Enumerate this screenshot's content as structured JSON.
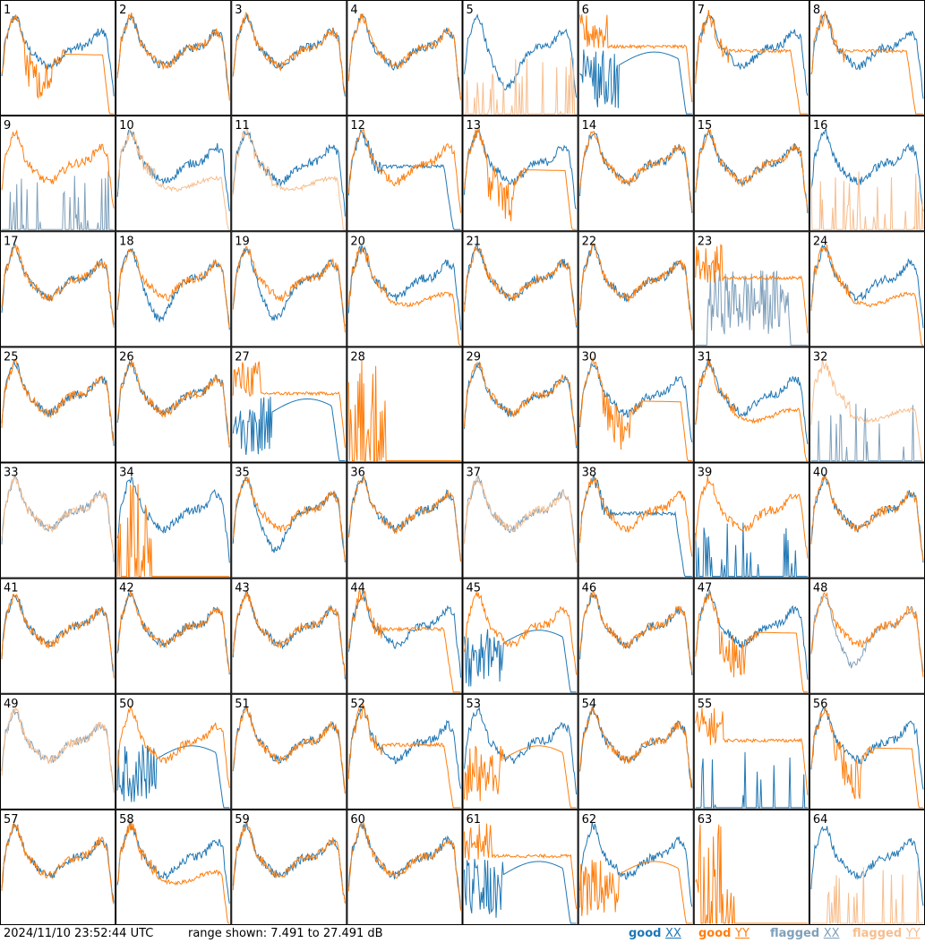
{
  "timestamp": "2024/11/10 23:52:44 UTC",
  "range_text": "range shown: 7.491 to 27.491 dB",
  "legend": [
    {
      "label": "good",
      "abbr": "XX",
      "color": "#1f77b4"
    },
    {
      "label": "good",
      "abbr": "YY",
      "color": "#ff7f0e"
    },
    {
      "label": "flagged",
      "abbr": "XX",
      "color": "#7fa0bb"
    },
    {
      "label": "flagged",
      "abbr": "YY",
      "color": "#f7be8e"
    }
  ],
  "colors": {
    "good_xx": "#1f77b4",
    "good_yy": "#ff7f0e",
    "flagged_xx": "#7fa0bb",
    "flagged_yy": "#f7be8e"
  },
  "chart_data": {
    "type": "line",
    "title": "",
    "xlabel": "",
    "ylabel": "",
    "ylim": [
      7.491,
      27.491
    ],
    "units": "dB",
    "grid": true,
    "legend_position": "bottom-right",
    "panels": [
      {
        "id": "1",
        "xx": {
          "status": "good",
          "shape": "normal"
        },
        "yy": {
          "status": "good",
          "shape": "droop"
        }
      },
      {
        "id": "2",
        "xx": {
          "status": "good",
          "shape": "normal"
        },
        "yy": {
          "status": "good",
          "shape": "normal"
        }
      },
      {
        "id": "3",
        "xx": {
          "status": "good",
          "shape": "normal"
        },
        "yy": {
          "status": "good",
          "shape": "normal"
        }
      },
      {
        "id": "4",
        "xx": {
          "status": "good",
          "shape": "normal"
        },
        "yy": {
          "status": "good",
          "shape": "normal"
        }
      },
      {
        "id": "5",
        "xx": {
          "status": "good",
          "shape": "dip"
        },
        "yy": {
          "status": "flagged",
          "shape": "spikes_low"
        }
      },
      {
        "id": "6",
        "xx": {
          "status": "good",
          "shape": "lowdrop"
        },
        "yy": {
          "status": "good",
          "shape": "high_flat"
        }
      },
      {
        "id": "7",
        "xx": {
          "status": "good",
          "shape": "normal"
        },
        "yy": {
          "status": "good",
          "shape": "flat_drop"
        }
      },
      {
        "id": "8",
        "xx": {
          "status": "good",
          "shape": "normal"
        },
        "yy": {
          "status": "good",
          "shape": "flat_drop"
        }
      },
      {
        "id": "9",
        "xx": {
          "status": "flagged",
          "shape": "spikes_low"
        },
        "yy": {
          "status": "good",
          "shape": "normal"
        }
      },
      {
        "id": "10",
        "xx": {
          "status": "good",
          "shape": "normal"
        },
        "yy": {
          "status": "flagged",
          "shape": "lowband"
        }
      },
      {
        "id": "11",
        "xx": {
          "status": "good",
          "shape": "normal"
        },
        "yy": {
          "status": "flagged",
          "shape": "lowband"
        }
      },
      {
        "id": "12",
        "xx": {
          "status": "good",
          "shape": "flat_drop"
        },
        "yy": {
          "status": "good",
          "shape": "normal"
        }
      },
      {
        "id": "13",
        "xx": {
          "status": "good",
          "shape": "normal"
        },
        "yy": {
          "status": "good",
          "shape": "droop"
        }
      },
      {
        "id": "14",
        "xx": {
          "status": "good",
          "shape": "normal"
        },
        "yy": {
          "status": "good",
          "shape": "normal"
        }
      },
      {
        "id": "15",
        "xx": {
          "status": "good",
          "shape": "normal"
        },
        "yy": {
          "status": "good",
          "shape": "normal"
        }
      },
      {
        "id": "16",
        "xx": {
          "status": "good",
          "shape": "normal"
        },
        "yy": {
          "status": "flagged",
          "shape": "spikes_low"
        }
      },
      {
        "id": "17",
        "xx": {
          "status": "good",
          "shape": "normal"
        },
        "yy": {
          "status": "good",
          "shape": "normal"
        }
      },
      {
        "id": "18",
        "xx": {
          "status": "good",
          "shape": "dip"
        },
        "yy": {
          "status": "good",
          "shape": "normal"
        }
      },
      {
        "id": "19",
        "xx": {
          "status": "good",
          "shape": "dip"
        },
        "yy": {
          "status": "good",
          "shape": "normal"
        }
      },
      {
        "id": "20",
        "xx": {
          "status": "good",
          "shape": "normal"
        },
        "yy": {
          "status": "good",
          "shape": "lowband"
        }
      },
      {
        "id": "21",
        "xx": {
          "status": "good",
          "shape": "normal"
        },
        "yy": {
          "status": "good",
          "shape": "normal"
        }
      },
      {
        "id": "22",
        "xx": {
          "status": "good",
          "shape": "normal"
        },
        "yy": {
          "status": "good",
          "shape": "normal"
        }
      },
      {
        "id": "23",
        "xx": {
          "status": "flagged",
          "shape": "spikes_mid"
        },
        "yy": {
          "status": "good",
          "shape": "high_flat"
        }
      },
      {
        "id": "24",
        "xx": {
          "status": "good",
          "shape": "normal"
        },
        "yy": {
          "status": "good",
          "shape": "lowband"
        }
      },
      {
        "id": "25",
        "xx": {
          "status": "good",
          "shape": "normal"
        },
        "yy": {
          "status": "good",
          "shape": "normal"
        }
      },
      {
        "id": "26",
        "xx": {
          "status": "good",
          "shape": "normal"
        },
        "yy": {
          "status": "good",
          "shape": "normal"
        }
      },
      {
        "id": "27",
        "xx": {
          "status": "good",
          "shape": "lowdrop"
        },
        "yy": {
          "status": "good",
          "shape": "high_flat"
        }
      },
      {
        "id": "28",
        "xx": {
          "status": "none",
          "shape": "none"
        },
        "yy": {
          "status": "good",
          "shape": "spikes_tall"
        }
      },
      {
        "id": "29",
        "xx": {
          "status": "good",
          "shape": "normal"
        },
        "yy": {
          "status": "good",
          "shape": "normal"
        }
      },
      {
        "id": "30",
        "xx": {
          "status": "good",
          "shape": "normal"
        },
        "yy": {
          "status": "good",
          "shape": "droop"
        }
      },
      {
        "id": "31",
        "xx": {
          "status": "good",
          "shape": "normal"
        },
        "yy": {
          "status": "good",
          "shape": "lowband"
        }
      },
      {
        "id": "32",
        "xx": {
          "status": "flagged",
          "shape": "spikes_low"
        },
        "yy": {
          "status": "flagged",
          "shape": "lowband"
        }
      },
      {
        "id": "33",
        "xx": {
          "status": "flagged",
          "shape": "normal"
        },
        "yy": {
          "status": "flagged",
          "shape": "normal"
        }
      },
      {
        "id": "34",
        "xx": {
          "status": "good",
          "shape": "normal"
        },
        "yy": {
          "status": "good",
          "shape": "spikes_tall"
        }
      },
      {
        "id": "35",
        "xx": {
          "status": "good",
          "shape": "dip"
        },
        "yy": {
          "status": "good",
          "shape": "normal"
        }
      },
      {
        "id": "36",
        "xx": {
          "status": "good",
          "shape": "normal"
        },
        "yy": {
          "status": "good",
          "shape": "normal"
        }
      },
      {
        "id": "37",
        "xx": {
          "status": "flagged",
          "shape": "normal"
        },
        "yy": {
          "status": "flagged",
          "shape": "normal"
        }
      },
      {
        "id": "38",
        "xx": {
          "status": "good",
          "shape": "flat_drop"
        },
        "yy": {
          "status": "good",
          "shape": "normal"
        }
      },
      {
        "id": "39",
        "xx": {
          "status": "good",
          "shape": "spikes_low"
        },
        "yy": {
          "status": "good",
          "shape": "normal"
        }
      },
      {
        "id": "40",
        "xx": {
          "status": "good",
          "shape": "normal"
        },
        "yy": {
          "status": "good",
          "shape": "normal"
        }
      },
      {
        "id": "41",
        "xx": {
          "status": "good",
          "shape": "normal"
        },
        "yy": {
          "status": "good",
          "shape": "normal"
        }
      },
      {
        "id": "42",
        "xx": {
          "status": "good",
          "shape": "normal"
        },
        "yy": {
          "status": "good",
          "shape": "normal"
        }
      },
      {
        "id": "43",
        "xx": {
          "status": "good",
          "shape": "normal"
        },
        "yy": {
          "status": "good",
          "shape": "normal"
        }
      },
      {
        "id": "44",
        "xx": {
          "status": "good",
          "shape": "normal"
        },
        "yy": {
          "status": "good",
          "shape": "flat_drop"
        }
      },
      {
        "id": "45",
        "xx": {
          "status": "good",
          "shape": "lowdrop"
        },
        "yy": {
          "status": "good",
          "shape": "normal"
        }
      },
      {
        "id": "46",
        "xx": {
          "status": "good",
          "shape": "normal"
        },
        "yy": {
          "status": "good",
          "shape": "normal"
        }
      },
      {
        "id": "47",
        "xx": {
          "status": "good",
          "shape": "normal"
        },
        "yy": {
          "status": "good",
          "shape": "droop"
        }
      },
      {
        "id": "48",
        "xx": {
          "status": "flagged",
          "shape": "dip"
        },
        "yy": {
          "status": "good",
          "shape": "normal"
        }
      },
      {
        "id": "49",
        "xx": {
          "status": "flagged",
          "shape": "normal"
        },
        "yy": {
          "status": "flagged",
          "shape": "normal"
        }
      },
      {
        "id": "50",
        "xx": {
          "status": "good",
          "shape": "lowdrop"
        },
        "yy": {
          "status": "good",
          "shape": "normal"
        }
      },
      {
        "id": "51",
        "xx": {
          "status": "good",
          "shape": "normal"
        },
        "yy": {
          "status": "good",
          "shape": "normal"
        }
      },
      {
        "id": "52",
        "xx": {
          "status": "good",
          "shape": "normal"
        },
        "yy": {
          "status": "good",
          "shape": "flat_drop"
        }
      },
      {
        "id": "53",
        "xx": {
          "status": "good",
          "shape": "normal"
        },
        "yy": {
          "status": "good",
          "shape": "lowdrop"
        }
      },
      {
        "id": "54",
        "xx": {
          "status": "good",
          "shape": "normal"
        },
        "yy": {
          "status": "good",
          "shape": "normal"
        }
      },
      {
        "id": "55",
        "xx": {
          "status": "good",
          "shape": "spikes_low"
        },
        "yy": {
          "status": "good",
          "shape": "high_flat"
        }
      },
      {
        "id": "56",
        "xx": {
          "status": "good",
          "shape": "normal"
        },
        "yy": {
          "status": "good",
          "shape": "droop"
        }
      },
      {
        "id": "57",
        "xx": {
          "status": "good",
          "shape": "normal"
        },
        "yy": {
          "status": "good",
          "shape": "normal"
        }
      },
      {
        "id": "58",
        "xx": {
          "status": "good",
          "shape": "normal"
        },
        "yy": {
          "status": "good",
          "shape": "lowband"
        }
      },
      {
        "id": "59",
        "xx": {
          "status": "good",
          "shape": "normal"
        },
        "yy": {
          "status": "good",
          "shape": "normal"
        }
      },
      {
        "id": "60",
        "xx": {
          "status": "good",
          "shape": "normal"
        },
        "yy": {
          "status": "good",
          "shape": "normal"
        }
      },
      {
        "id": "61",
        "xx": {
          "status": "good",
          "shape": "lowdrop"
        },
        "yy": {
          "status": "good",
          "shape": "high_flat"
        }
      },
      {
        "id": "62",
        "xx": {
          "status": "good",
          "shape": "normal"
        },
        "yy": {
          "status": "good",
          "shape": "lowdrop"
        }
      },
      {
        "id": "63",
        "xx": {
          "status": "none",
          "shape": "none"
        },
        "yy": {
          "status": "good",
          "shape": "spikes_tall"
        }
      },
      {
        "id": "64",
        "xx": {
          "status": "good",
          "shape": "normal"
        },
        "yy": {
          "status": "flagged",
          "shape": "spikes_low"
        }
      }
    ]
  }
}
